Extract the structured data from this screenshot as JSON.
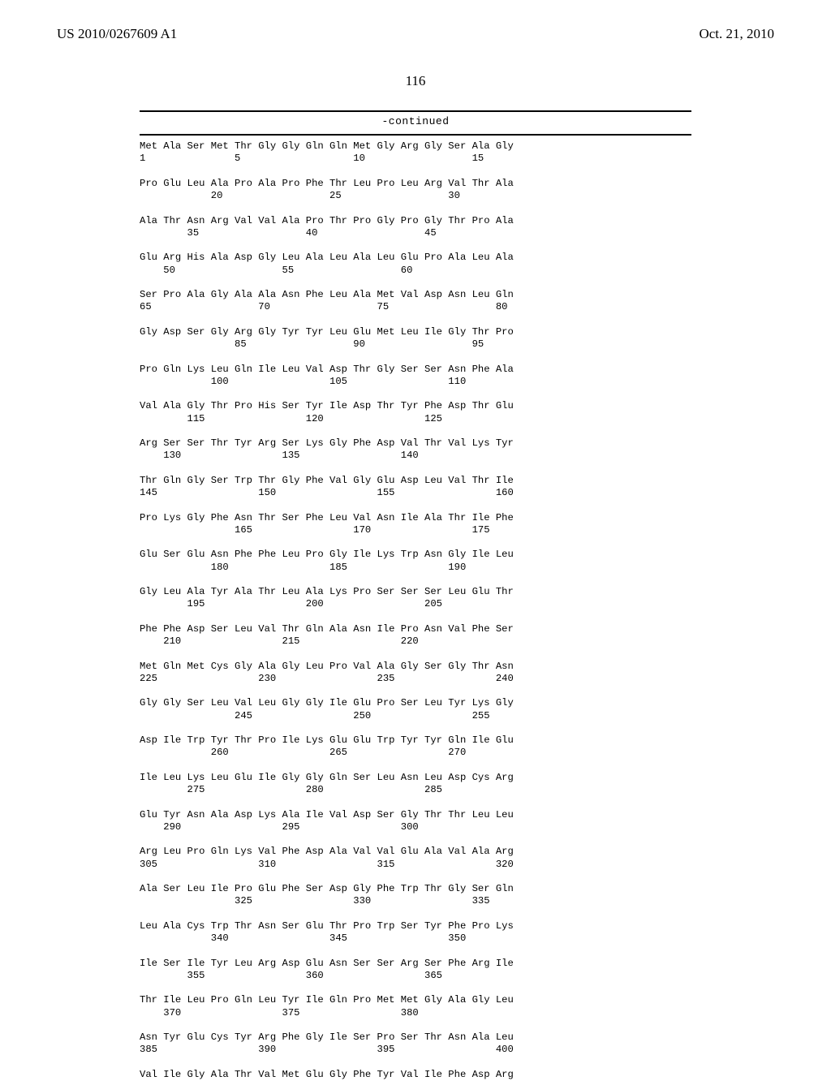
{
  "header": {
    "left": "US 2010/0267609 A1",
    "right": "Oct. 21, 2010"
  },
  "page_number": "116",
  "continued_label": "-continued",
  "sequence_text": "Met Ala Ser Met Thr Gly Gly Gln Gln Met Gly Arg Gly Ser Ala Gly\n1               5                   10                  15\n\nPro Glu Leu Ala Pro Ala Pro Phe Thr Leu Pro Leu Arg Val Thr Ala\n            20                  25                  30\n\nAla Thr Asn Arg Val Val Ala Pro Thr Pro Gly Pro Gly Thr Pro Ala\n        35                  40                  45\n\nGlu Arg His Ala Asp Gly Leu Ala Leu Ala Leu Glu Pro Ala Leu Ala\n    50                  55                  60\n\nSer Pro Ala Gly Ala Ala Asn Phe Leu Ala Met Val Asp Asn Leu Gln\n65                  70                  75                  80\n\nGly Asp Ser Gly Arg Gly Tyr Tyr Leu Glu Met Leu Ile Gly Thr Pro\n                85                  90                  95\n\nPro Gln Lys Leu Gln Ile Leu Val Asp Thr Gly Ser Ser Asn Phe Ala\n            100                 105                 110\n\nVal Ala Gly Thr Pro His Ser Tyr Ile Asp Thr Tyr Phe Asp Thr Glu\n        115                 120                 125\n\nArg Ser Ser Thr Tyr Arg Ser Lys Gly Phe Asp Val Thr Val Lys Tyr\n    130                 135                 140\n\nThr Gln Gly Ser Trp Thr Gly Phe Val Gly Glu Asp Leu Val Thr Ile\n145                 150                 155                 160\n\nPro Lys Gly Phe Asn Thr Ser Phe Leu Val Asn Ile Ala Thr Ile Phe\n                165                 170                 175\n\nGlu Ser Glu Asn Phe Phe Leu Pro Gly Ile Lys Trp Asn Gly Ile Leu\n            180                 185                 190\n\nGly Leu Ala Tyr Ala Thr Leu Ala Lys Pro Ser Ser Ser Leu Glu Thr\n        195                 200                 205\n\nPhe Phe Asp Ser Leu Val Thr Gln Ala Asn Ile Pro Asn Val Phe Ser\n    210                 215                 220\n\nMet Gln Met Cys Gly Ala Gly Leu Pro Val Ala Gly Ser Gly Thr Asn\n225                 230                 235                 240\n\nGly Gly Ser Leu Val Leu Gly Gly Ile Glu Pro Ser Leu Tyr Lys Gly\n                245                 250                 255\n\nAsp Ile Trp Tyr Thr Pro Ile Lys Glu Glu Trp Tyr Tyr Gln Ile Glu\n            260                 265                 270\n\nIle Leu Lys Leu Glu Ile Gly Gly Gln Ser Leu Asn Leu Asp Cys Arg\n        275                 280                 285\n\nGlu Tyr Asn Ala Asp Lys Ala Ile Val Asp Ser Gly Thr Thr Leu Leu\n    290                 295                 300\n\nArg Leu Pro Gln Lys Val Phe Asp Ala Val Val Glu Ala Val Ala Arg\n305                 310                 315                 320\n\nAla Ser Leu Ile Pro Glu Phe Ser Asp Gly Phe Trp Thr Gly Ser Gln\n                325                 330                 335\n\nLeu Ala Cys Trp Thr Asn Ser Glu Thr Pro Trp Ser Tyr Phe Pro Lys\n            340                 345                 350\n\nIle Ser Ile Tyr Leu Arg Asp Glu Asn Ser Ser Arg Ser Phe Arg Ile\n        355                 360                 365\n\nThr Ile Leu Pro Gln Leu Tyr Ile Gln Pro Met Met Gly Ala Gly Leu\n    370                 375                 380\n\nAsn Tyr Glu Cys Tyr Arg Phe Gly Ile Ser Pro Ser Thr Asn Ala Leu\n385                 390                 395                 400\n\nVal Ile Gly Ala Thr Val Met Glu Gly Phe Tyr Val Ile Phe Asp Arg"
}
